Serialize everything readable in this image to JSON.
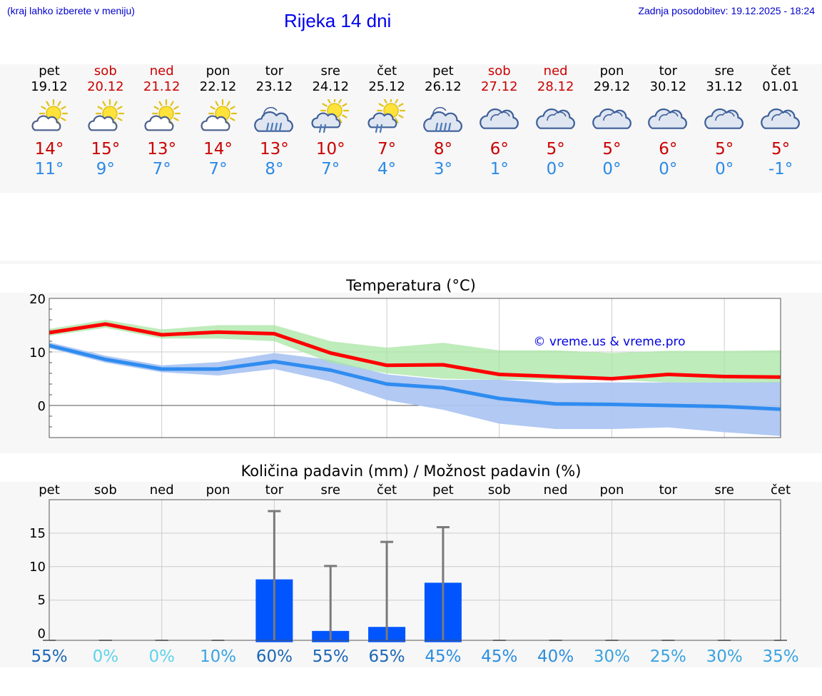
{
  "header": {
    "menu_hint": "(kraj lahko izberete v meniju)",
    "title": "Rijeka 14 dni",
    "updated": "Zadnja posodobitev: 19.12.2025 - 18:24"
  },
  "colors": {
    "weekend": "#cc0000",
    "weekday": "#000000",
    "max_temp": "#cc0000",
    "min_temp": "#2b8ae6",
    "max_line": "#ff0000",
    "min_line": "#2f8cf0",
    "max_band": "#a8e6a3",
    "min_band": "#adc6f2",
    "precip_bar": "#0055ff"
  },
  "days": [
    {
      "name": "pet",
      "date": "19.12",
      "weekend": false,
      "icon": "partly-sunny-icon",
      "max": "14°",
      "min": "11°"
    },
    {
      "name": "sob",
      "date": "20.12",
      "weekend": true,
      "icon": "partly-sunny-icon",
      "max": "15°",
      "min": "9°"
    },
    {
      "name": "ned",
      "date": "21.12",
      "weekend": true,
      "icon": "partly-sunny-icon",
      "max": "13°",
      "min": "7°"
    },
    {
      "name": "pon",
      "date": "22.12",
      "weekend": false,
      "icon": "partly-sunny-icon",
      "max": "14°",
      "min": "7°"
    },
    {
      "name": "tor",
      "date": "23.12",
      "weekend": false,
      "icon": "rain-cloud-icon",
      "max": "13°",
      "min": "8°"
    },
    {
      "name": "sre",
      "date": "24.12",
      "weekend": false,
      "icon": "sun-rain-icon",
      "max": "10°",
      "min": "7°"
    },
    {
      "name": "čet",
      "date": "25.12",
      "weekend": false,
      "icon": "sun-rain-icon",
      "max": "7°",
      "min": "4°"
    },
    {
      "name": "pet",
      "date": "26.12",
      "weekend": false,
      "icon": "rain-cloud-icon",
      "max": "8°",
      "min": "3°"
    },
    {
      "name": "sob",
      "date": "27.12",
      "weekend": true,
      "icon": "cloud-icon",
      "max": "6°",
      "min": "1°"
    },
    {
      "name": "ned",
      "date": "28.12",
      "weekend": true,
      "icon": "cloud-icon",
      "max": "5°",
      "min": "0°"
    },
    {
      "name": "pon",
      "date": "29.12",
      "weekend": false,
      "icon": "cloud-icon",
      "max": "5°",
      "min": "0°"
    },
    {
      "name": "tor",
      "date": "30.12",
      "weekend": false,
      "icon": "cloud-icon",
      "max": "6°",
      "min": "0°"
    },
    {
      "name": "sre",
      "date": "31.12",
      "weekend": false,
      "icon": "cloud-icon",
      "max": "5°",
      "min": "0°"
    },
    {
      "name": "čet",
      "date": "01.01",
      "weekend": false,
      "icon": "cloud-icon",
      "max": "5°",
      "min": "-1°"
    }
  ],
  "chart_data": [
    {
      "type": "line",
      "title": "Temperatura (°C)",
      "watermark": "© vreme.us & vreme.pro",
      "ylim": [
        -6,
        20
      ],
      "yticks": [
        0,
        10,
        20
      ],
      "grid": true,
      "series": [
        {
          "name": "max",
          "values": [
            13.6,
            15.2,
            13.2,
            13.7,
            13.4,
            9.8,
            7.5,
            7.6,
            5.8,
            5.4,
            5.0,
            5.8,
            5.4,
            5.3
          ],
          "band_low": [
            13.0,
            14.5,
            12.5,
            12.5,
            12.0,
            8.0,
            6.0,
            5.0,
            4.8,
            4.8,
            4.8,
            4.3,
            4.3,
            4.3
          ],
          "band_high": [
            14.3,
            16.0,
            14.2,
            15.0,
            15.0,
            12.0,
            10.8,
            11.7,
            10.3,
            10.3,
            9.8,
            10.2,
            10.2,
            10.3
          ]
        },
        {
          "name": "min",
          "values": [
            11.2,
            8.6,
            6.8,
            6.8,
            8.2,
            6.6,
            4.0,
            3.3,
            1.3,
            0.3,
            0.2,
            0.0,
            -0.2,
            -0.7
          ],
          "band_low": [
            10.7,
            8.0,
            6.2,
            5.6,
            6.8,
            4.5,
            1.0,
            -0.8,
            -3.4,
            -4.4,
            -4.4,
            -4.1,
            -5.0,
            -5.7
          ],
          "band_high": [
            11.8,
            9.3,
            7.5,
            8.1,
            9.8,
            8.5,
            5.8,
            4.8,
            4.8,
            4.2,
            4.3,
            4.3,
            4.3,
            4.4
          ]
        }
      ]
    },
    {
      "type": "bar",
      "title": "Količina padavin (mm) / Možnost padavin (%)",
      "categories": [
        "pet",
        "sob",
        "ned",
        "pon",
        "tor",
        "sre",
        "čet",
        "pet",
        "sob",
        "ned",
        "pon",
        "tor",
        "sre",
        "čet"
      ],
      "values": [
        0,
        0,
        0,
        0,
        8.1,
        0.4,
        1.0,
        7.6,
        0,
        0,
        0,
        0,
        0,
        0
      ],
      "error_max": [
        0,
        0,
        0,
        0,
        18.3,
        10.1,
        13.7,
        15.9,
        0,
        0,
        0,
        0,
        0,
        0
      ],
      "probability": [
        "55%",
        "0%",
        "0%",
        "10%",
        "60%",
        "55%",
        "65%",
        "45%",
        "45%",
        "40%",
        "30%",
        "25%",
        "30%",
        "35%"
      ],
      "prob_colors": [
        "#1c66b6",
        "#5fd3ea",
        "#5fd3ea",
        "#3aa3e0",
        "#1c66b6",
        "#1c66b6",
        "#1c66b6",
        "#2b8ee0",
        "#2b8ee0",
        "#2b8ee0",
        "#3aa3e0",
        "#3aa3e0",
        "#3aa3e0",
        "#3aa3e0"
      ],
      "ylim": [
        -1,
        20
      ],
      "yticks": [
        0,
        5,
        10,
        15
      ],
      "ytick_labels": [
        "0",
        "5",
        "10",
        "15"
      ],
      "grid": true
    }
  ]
}
